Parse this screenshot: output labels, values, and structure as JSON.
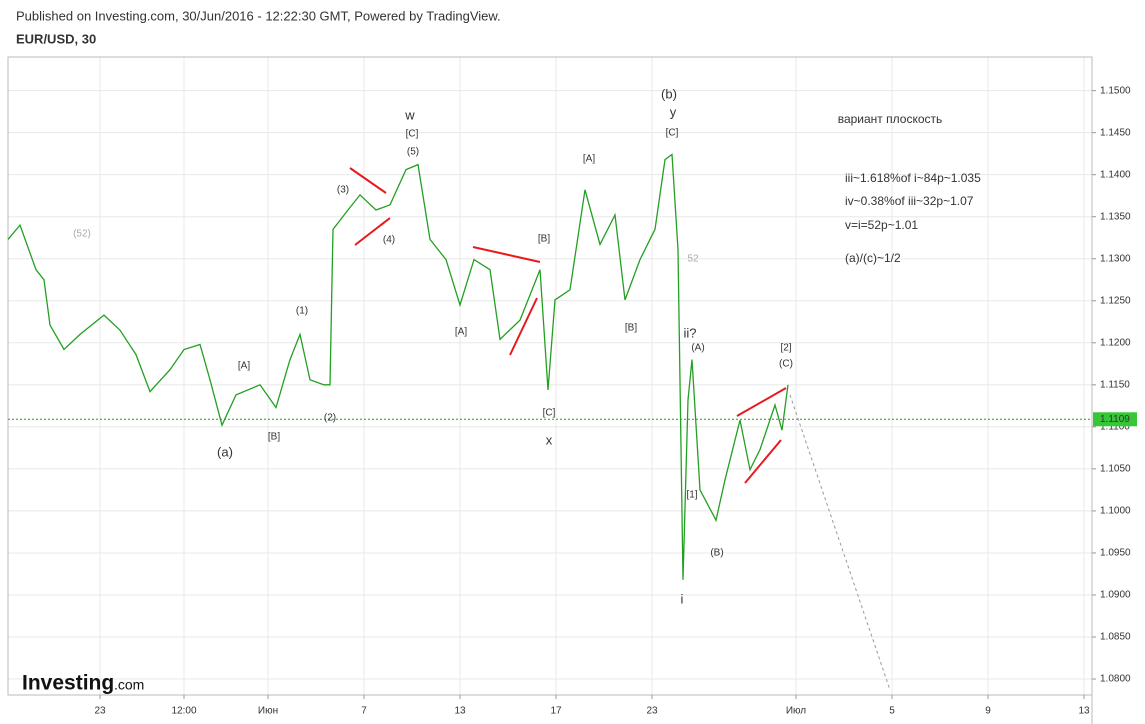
{
  "header": {
    "published": "Published on Investing.com, 30/Jun/2016 - 12:22:30 GMT, Powered by TradingView.",
    "symbol": "EUR/USD, 30"
  },
  "logo": {
    "brand": "Investing",
    "suffix": ".com"
  },
  "chart_data": {
    "type": "line",
    "color": "#22a022",
    "y_axis": "right",
    "grid": true,
    "x": [
      0,
      3,
      7,
      9,
      10.5,
      14,
      18,
      24,
      28,
      32,
      35.5,
      40.5,
      44,
      48,
      50.5,
      53.5,
      57,
      63,
      67,
      70.5,
      73,
      75.5,
      79,
      80.5,
      81.25,
      85,
      88,
      92,
      95.5,
      99.5,
      102.5,
      105.5,
      109.5,
      113,
      116.5,
      120.5,
      123,
      128,
      133,
      135,
      136.75,
      140.5,
      144.25,
      148,
      151.75,
      154.25,
      158,
      161.75,
      164.25,
      166,
      167.5,
      168.75,
      170,
      171,
      173,
      177,
      179.25,
      183,
      185.5,
      188,
      191.75,
      193.5,
      195
    ],
    "values": [
      1.1323,
      1.134,
      1.1287,
      1.1275,
      1.1221,
      1.1192,
      1.121,
      1.1233,
      1.1215,
      1.1186,
      1.1142,
      1.1168,
      1.1192,
      1.1198,
      1.1156,
      1.1102,
      1.1138,
      1.115,
      1.1123,
      1.118,
      1.121,
      1.1156,
      1.115,
      1.115,
      1.1335,
      1.1358,
      1.1376,
      1.1358,
      1.1364,
      1.1406,
      1.1412,
      1.1323,
      1.1299,
      1.1245,
      1.1299,
      1.1287,
      1.1204,
      1.1227,
      1.1287,
      1.1144,
      1.1251,
      1.1263,
      1.1382,
      1.1317,
      1.1352,
      1.1251,
      1.1299,
      1.1335,
      1.1418,
      1.1424,
      1.1311,
      1.0918,
      1.1132,
      1.118,
      1.1025,
      1.0989,
      1.1037,
      1.1108,
      1.1049,
      1.1073,
      1.1126,
      1.1096,
      1.115
    ],
    "xlim": [
      0,
      271
    ],
    "xticks": [
      {
        "value": 23,
        "label": "23"
      },
      {
        "value": 44,
        "label": "12:00"
      },
      {
        "value": 65,
        "label": "Июн"
      },
      {
        "value": 89,
        "label": "7"
      },
      {
        "value": 113,
        "label": "13"
      },
      {
        "value": 137,
        "label": "17"
      },
      {
        "value": 161,
        "label": "23"
      },
      {
        "value": 197,
        "label": "Июл"
      },
      {
        "value": 221,
        "label": "5"
      },
      {
        "value": 245,
        "label": "9"
      },
      {
        "value": 269,
        "label": "13"
      }
    ],
    "ylim": [
      1.0781,
      1.154
    ],
    "yticks": [
      {
        "value": 1.08,
        "label": "1.0800"
      },
      {
        "value": 1.085,
        "label": "1.0850"
      },
      {
        "value": 1.09,
        "label": "1.0900"
      },
      {
        "value": 1.095,
        "label": "1.0950"
      },
      {
        "value": 1.1,
        "label": "1.1000"
      },
      {
        "value": 1.105,
        "label": "1.1050"
      },
      {
        "value": 1.11,
        "label": "1.1100"
      },
      {
        "value": 1.115,
        "label": "1.1150"
      },
      {
        "value": 1.12,
        "label": "1.1200"
      },
      {
        "value": 1.125,
        "label": "1.1250"
      },
      {
        "value": 1.13,
        "label": "1.1300"
      },
      {
        "value": 1.135,
        "label": "1.1350"
      },
      {
        "value": 1.14,
        "label": "1.1400"
      },
      {
        "value": 1.145,
        "label": "1.1450"
      },
      {
        "value": 1.15,
        "label": "1.1500"
      }
    ],
    "last_price": 1.1109,
    "annotations": [
      "(52)",
      "(a)",
      "[A]",
      "[B]",
      "(1)",
      "(2)",
      "(3)",
      "(4)",
      "(5)",
      "[C]",
      "w",
      "[A]",
      "[B]",
      "[C]",
      "x",
      "[A]",
      "[B]",
      "(b)",
      "y",
      "[C]",
      "52",
      "ii?",
      "(A)",
      "[2]",
      "(C)",
      "[1]",
      "(B)",
      "i"
    ],
    "notes": [
      "вариант плоскость",
      "iii~1.618%of i~84p~1.035",
      "iv~0.38%of iii~32p~1.07",
      "v=i=52p~1.01",
      "(a)/(c)~1/2"
    ]
  }
}
